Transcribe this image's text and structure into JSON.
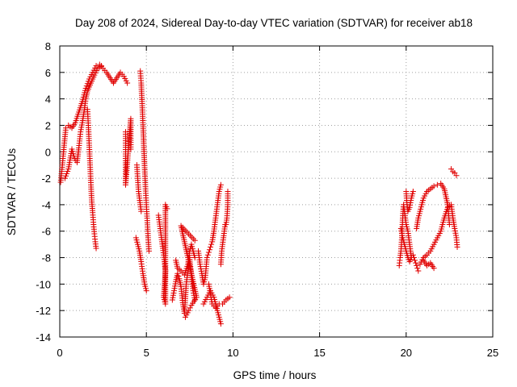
{
  "chart_data": {
    "type": "scatter",
    "title": "Day 208 of 2024, Sidereal Day-to-day VTEC variation (SDTVAR) for receiver ab18",
    "xlabel": "GPS time / hours",
    "ylabel": "SDTVAR / TECUs",
    "xlim": [
      0,
      25
    ],
    "ylim": [
      -14,
      8
    ],
    "xticks": [
      0,
      5,
      10,
      15,
      20,
      25
    ],
    "yticks": [
      8,
      6,
      4,
      2,
      0,
      -2,
      -4,
      -6,
      -8,
      -10,
      -12,
      -14
    ],
    "xtick_labels": [
      "0",
      "5",
      "10",
      "15",
      "20",
      "25"
    ],
    "ytick_labels": [
      "8",
      "6",
      "4",
      "2",
      "0",
      "-2",
      "-4",
      "-6",
      "-8",
      "-10",
      "-12",
      "-14"
    ],
    "grid": true,
    "marker": "+",
    "marker_color": "#e00000",
    "series": [
      {
        "name": "SDTVAR",
        "segments": [
          [
            [
              0.05,
              -2.3
            ],
            [
              0.15,
              -1.0
            ],
            [
              0.25,
              0.5
            ],
            [
              0.35,
              1.8
            ],
            [
              0.5,
              2.0
            ],
            [
              0.7,
              1.8
            ],
            [
              0.9,
              2.2
            ],
            [
              1.1,
              3.0
            ],
            [
              1.3,
              3.8
            ],
            [
              1.5,
              4.8
            ],
            [
              1.7,
              5.5
            ],
            [
              1.9,
              6.0
            ],
            [
              2.1,
              6.5
            ],
            [
              2.3,
              6.6
            ],
            [
              2.5,
              6.3
            ],
            [
              2.7,
              6.0
            ],
            [
              2.9,
              5.6
            ],
            [
              3.1,
              5.2
            ],
            [
              3.3,
              5.6
            ],
            [
              3.5,
              6.0
            ],
            [
              3.7,
              5.7
            ],
            [
              3.9,
              5.2
            ]
          ],
          [
            [
              0.3,
              -2.0
            ],
            [
              0.5,
              -1.3
            ],
            [
              0.7,
              0.2
            ],
            [
              0.85,
              -0.5
            ],
            [
              1.0,
              -0.8
            ],
            [
              1.1,
              0.3
            ],
            [
              1.2,
              1.5
            ],
            [
              1.3,
              2.2
            ],
            [
              1.4,
              3.0
            ],
            [
              1.5,
              4.0
            ],
            [
              1.6,
              4.6
            ],
            [
              1.8,
              5.2
            ],
            [
              2.0,
              5.8
            ],
            [
              2.2,
              6.3
            ],
            [
              2.4,
              6.5
            ]
          ],
          [
            [
              1.6,
              3.2
            ],
            [
              1.65,
              2.0
            ],
            [
              1.7,
              0.5
            ],
            [
              1.75,
              -1.0
            ],
            [
              1.8,
              -2.5
            ],
            [
              1.85,
              -3.8
            ],
            [
              1.9,
              -4.6
            ],
            [
              1.95,
              -5.5
            ],
            [
              2.0,
              -6.2
            ],
            [
              2.05,
              -6.8
            ],
            [
              2.1,
              -7.3
            ]
          ],
          [
            [
              3.8,
              1.5
            ],
            [
              3.8,
              0.5
            ],
            [
              3.8,
              -0.5
            ],
            [
              3.8,
              -1.5
            ],
            [
              3.8,
              -2.5
            ],
            [
              4.1,
              2.5
            ],
            [
              4.1,
              1.2
            ],
            [
              4.1,
              0.2
            ]
          ],
          [
            [
              4.4,
              -6.5
            ],
            [
              4.5,
              -7.0
            ],
            [
              4.6,
              -7.5
            ],
            [
              4.7,
              -8.3
            ],
            [
              4.8,
              -9.2
            ],
            [
              4.9,
              -10.0
            ],
            [
              5.0,
              -10.5
            ]
          ],
          [
            [
              4.65,
              6.1
            ],
            [
              4.7,
              5.2
            ],
            [
              4.75,
              3.8
            ],
            [
              4.8,
              2.2
            ],
            [
              4.85,
              0.5
            ],
            [
              4.9,
              -1.2
            ],
            [
              4.95,
              -2.8
            ],
            [
              5.0,
              -4.0
            ],
            [
              5.05,
              -5.2
            ],
            [
              5.1,
              -6.5
            ],
            [
              5.15,
              -7.5
            ]
          ],
          [
            [
              4.45,
              -1.0
            ],
            [
              4.5,
              -2.0
            ],
            [
              4.55,
              -3.0
            ],
            [
              4.6,
              -3.5
            ],
            [
              4.7,
              -4.5
            ]
          ],
          [
            [
              5.7,
              -4.8
            ],
            [
              5.8,
              -5.8
            ],
            [
              5.9,
              -6.8
            ],
            [
              6.0,
              -7.8
            ],
            [
              6.1,
              -9.0
            ],
            [
              6.0,
              -11.0
            ],
            [
              6.1,
              -11.5
            ],
            [
              6.1,
              -4.0
            ],
            [
              6.2,
              -4.3
            ]
          ],
          [
            [
              6.5,
              -11.2
            ],
            [
              6.6,
              -10.5
            ],
            [
              6.7,
              -9.8
            ],
            [
              6.8,
              -9.2
            ],
            [
              6.9,
              -9.6
            ],
            [
              7.0,
              -10.2
            ],
            [
              7.1,
              -11.4
            ],
            [
              7.2,
              -12.2
            ],
            [
              7.3,
              -10.0
            ],
            [
              7.4,
              -9.0
            ],
            [
              7.5,
              -8.0
            ],
            [
              7.6,
              -9.5
            ],
            [
              7.7,
              -10.5
            ],
            [
              7.8,
              -11.2
            ]
          ],
          [
            [
              6.7,
              -8.2
            ],
            [
              6.8,
              -8.8
            ],
            [
              7.0,
              -9.0
            ],
            [
              7.2,
              -9.3
            ],
            [
              7.4,
              -8.5
            ],
            [
              7.5,
              -7.5
            ],
            [
              7.6,
              -7.0
            ],
            [
              7.8,
              -8.0
            ]
          ],
          [
            [
              7.25,
              -12.5
            ],
            [
              7.45,
              -12.0
            ],
            [
              7.6,
              -11.6
            ],
            [
              7.9,
              -11.0
            ],
            [
              7.0,
              -5.6
            ],
            [
              7.8,
              -6.7
            ]
          ],
          [
            [
              8.0,
              -7.5
            ],
            [
              8.1,
              -8.5
            ],
            [
              8.2,
              -9.2
            ],
            [
              8.3,
              -10.0
            ],
            [
              8.4,
              -9.5
            ],
            [
              8.5,
              -8.0
            ],
            [
              8.6,
              -7.6
            ],
            [
              8.7,
              -7.2
            ],
            [
              8.8,
              -6.8
            ],
            [
              8.9,
              -6.0
            ],
            [
              9.0,
              -5.0
            ],
            [
              9.1,
              -4.0
            ],
            [
              9.2,
              -3.0
            ],
            [
              9.3,
              -2.5
            ]
          ],
          [
            [
              8.3,
              -11.5
            ],
            [
              8.5,
              -11.0
            ],
            [
              8.7,
              -10.5
            ],
            [
              8.9,
              -11.0
            ],
            [
              9.1,
              -12.0
            ],
            [
              9.2,
              -12.5
            ],
            [
              9.3,
              -13.0
            ]
          ],
          [
            [
              8.6,
              -10.0
            ],
            [
              8.8,
              -11.5
            ],
            [
              9.0,
              -11.8
            ],
            [
              9.2,
              -11.5
            ],
            [
              9.4,
              -11.5
            ],
            [
              9.6,
              -11.2
            ],
            [
              9.8,
              -11.0
            ]
          ],
          [
            [
              9.3,
              -8.5
            ],
            [
              9.35,
              -7.5
            ],
            [
              9.4,
              -7.0
            ],
            [
              9.45,
              -6.5
            ],
            [
              9.5,
              -6.0
            ],
            [
              9.55,
              -5.5
            ],
            [
              9.6,
              -5.5
            ],
            [
              9.65,
              -5.0
            ],
            [
              9.7,
              -4.0
            ],
            [
              9.7,
              -3.0
            ]
          ],
          [
            [
              19.6,
              -8.6
            ],
            [
              19.65,
              -8.0
            ],
            [
              19.7,
              -7.5
            ],
            [
              19.75,
              -6.5
            ],
            [
              19.8,
              -5.0
            ],
            [
              19.85,
              -4.0
            ],
            [
              19.9,
              -4.5
            ],
            [
              20.0,
              -5.5
            ],
            [
              20.1,
              -6.0
            ],
            [
              20.2,
              -7.0
            ],
            [
              20.3,
              -8.0
            ]
          ],
          [
            [
              19.7,
              -5.8
            ],
            [
              19.8,
              -6.5
            ],
            [
              19.9,
              -7.0
            ],
            [
              20.0,
              -7.5
            ],
            [
              20.1,
              -8.0
            ],
            [
              20.2,
              -8.3
            ],
            [
              20.3,
              -8.0
            ],
            [
              20.4,
              -7.8
            ],
            [
              20.5,
              -8.2
            ],
            [
              20.6,
              -8.6
            ],
            [
              20.7,
              -9.0
            ]
          ],
          [
            [
              20.0,
              -3.0
            ],
            [
              20.05,
              -4.0
            ],
            [
              20.1,
              -4.5
            ],
            [
              20.2,
              -4.2
            ],
            [
              20.3,
              -3.5
            ],
            [
              20.4,
              -3.0
            ]
          ],
          [
            [
              20.6,
              -5.8
            ],
            [
              20.7,
              -5.0
            ],
            [
              20.8,
              -4.5
            ],
            [
              20.9,
              -4.0
            ],
            [
              21.0,
              -3.5
            ],
            [
              21.2,
              -3.0
            ],
            [
              21.4,
              -2.8
            ],
            [
              21.6,
              -2.6
            ],
            [
              21.8,
              -2.5
            ],
            [
              22.0,
              -2.4
            ],
            [
              22.2,
              -2.8
            ],
            [
              22.4,
              -4.0
            ],
            [
              22.5,
              -5.5
            ]
          ],
          [
            [
              20.8,
              -8.5
            ],
            [
              21.0,
              -8.0
            ],
            [
              21.2,
              -7.8
            ],
            [
              21.4,
              -7.5
            ],
            [
              21.6,
              -7.0
            ],
            [
              21.8,
              -6.5
            ],
            [
              22.0,
              -6.0
            ],
            [
              22.2,
              -5.0
            ],
            [
              22.4,
              -4.2
            ],
            [
              22.6,
              -4.0
            ],
            [
              22.7,
              -5.0
            ],
            [
              22.8,
              -5.8
            ],
            [
              22.9,
              -6.5
            ],
            [
              22.95,
              -7.2
            ]
          ],
          [
            [
              21.0,
              -8.2
            ],
            [
              21.2,
              -8.6
            ],
            [
              21.4,
              -8.4
            ],
            [
              21.6,
              -8.8
            ]
          ],
          [
            [
              22.6,
              -1.3
            ],
            [
              22.7,
              -1.5
            ],
            [
              22.8,
              -1.6
            ],
            [
              22.9,
              -1.8
            ]
          ]
        ]
      }
    ]
  }
}
